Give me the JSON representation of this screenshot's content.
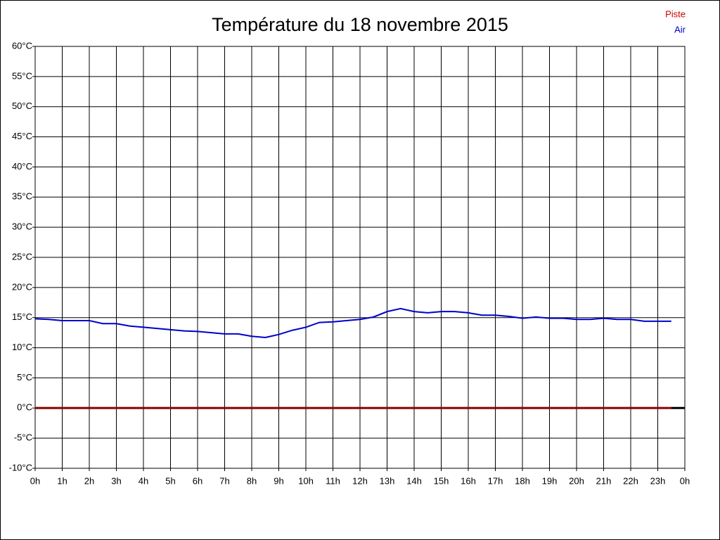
{
  "chart_data": {
    "type": "line",
    "title": "Température du 18 novembre 2015",
    "x": [
      0,
      0.5,
      1,
      1.5,
      2,
      2.5,
      3,
      3.5,
      4,
      4.5,
      5,
      5.5,
      6,
      6.5,
      7,
      7.5,
      8,
      8.5,
      9,
      9.5,
      10,
      10.5,
      11,
      11.5,
      12,
      12.5,
      13,
      13.5,
      14,
      14.5,
      15,
      15.5,
      16,
      16.5,
      17,
      17.5,
      18,
      18.5,
      19,
      19.5,
      20,
      20.5,
      21,
      21.5,
      22,
      22.5,
      23,
      23.5
    ],
    "series": [
      {
        "name": "Piste",
        "color": "#cc0000",
        "values": [
          0,
          0,
          0,
          0,
          0,
          0,
          0,
          0,
          0,
          0,
          0,
          0,
          0,
          0,
          0,
          0,
          0,
          0,
          0,
          0,
          0,
          0,
          0,
          0,
          0,
          0,
          0,
          0,
          0,
          0,
          0,
          0,
          0,
          0,
          0,
          0,
          0,
          0,
          0,
          0,
          0,
          0,
          0,
          0,
          0,
          0,
          0,
          0
        ]
      },
      {
        "name": "Air",
        "color": "#0000cc",
        "values": [
          14.8,
          14.7,
          14.5,
          14.5,
          14.5,
          14.0,
          14.0,
          13.6,
          13.4,
          13.2,
          13.0,
          12.8,
          12.7,
          12.5,
          12.3,
          12.3,
          11.9,
          11.7,
          12.2,
          12.9,
          13.4,
          14.2,
          14.3,
          14.5,
          14.7,
          15.1,
          16.0,
          16.5,
          16.0,
          15.8,
          16.0,
          16.0,
          15.8,
          15.4,
          15.4,
          15.2,
          14.9,
          15.1,
          14.9,
          14.9,
          14.7,
          14.7,
          14.9,
          14.7,
          14.7,
          14.4,
          14.4,
          14.4
        ]
      }
    ],
    "xlim": [
      0,
      24
    ],
    "xticks": [
      {
        "value": 0,
        "label": "0h"
      },
      {
        "value": 1,
        "label": "1h"
      },
      {
        "value": 2,
        "label": "2h"
      },
      {
        "value": 3,
        "label": "3h"
      },
      {
        "value": 4,
        "label": "4h"
      },
      {
        "value": 5,
        "label": "5h"
      },
      {
        "value": 6,
        "label": "6h"
      },
      {
        "value": 7,
        "label": "7h"
      },
      {
        "value": 8,
        "label": "8h"
      },
      {
        "value": 9,
        "label": "9h"
      },
      {
        "value": 10,
        "label": "10h"
      },
      {
        "value": 11,
        "label": "11h"
      },
      {
        "value": 12,
        "label": "12h"
      },
      {
        "value": 13,
        "label": "13h"
      },
      {
        "value": 14,
        "label": "14h"
      },
      {
        "value": 15,
        "label": "15h"
      },
      {
        "value": 16,
        "label": "16h"
      },
      {
        "value": 17,
        "label": "17h"
      },
      {
        "value": 18,
        "label": "18h"
      },
      {
        "value": 19,
        "label": "19h"
      },
      {
        "value": 20,
        "label": "20h"
      },
      {
        "value": 21,
        "label": "21h"
      },
      {
        "value": 22,
        "label": "22h"
      },
      {
        "value": 23,
        "label": "23h"
      },
      {
        "value": 24,
        "label": "0h"
      }
    ],
    "ylim": [
      -10,
      60
    ],
    "yticks": [
      {
        "value": -10,
        "label": "-10°C"
      },
      {
        "value": -5,
        "label": "-5°C"
      },
      {
        "value": 0,
        "label": "0°C"
      },
      {
        "value": 5,
        "label": "5°C"
      },
      {
        "value": 10,
        "label": "10°C"
      },
      {
        "value": 15,
        "label": "15°C"
      },
      {
        "value": 20,
        "label": "20°C"
      },
      {
        "value": 25,
        "label": "25°C"
      },
      {
        "value": 30,
        "label": "30°C"
      },
      {
        "value": 35,
        "label": "35°C"
      },
      {
        "value": 40,
        "label": "40°C"
      },
      {
        "value": 45,
        "label": "45°C"
      },
      {
        "value": 50,
        "label": "50°C"
      },
      {
        "value": 55,
        "label": "55°C"
      },
      {
        "value": 60,
        "label": "60°C"
      }
    ],
    "grid": true
  }
}
